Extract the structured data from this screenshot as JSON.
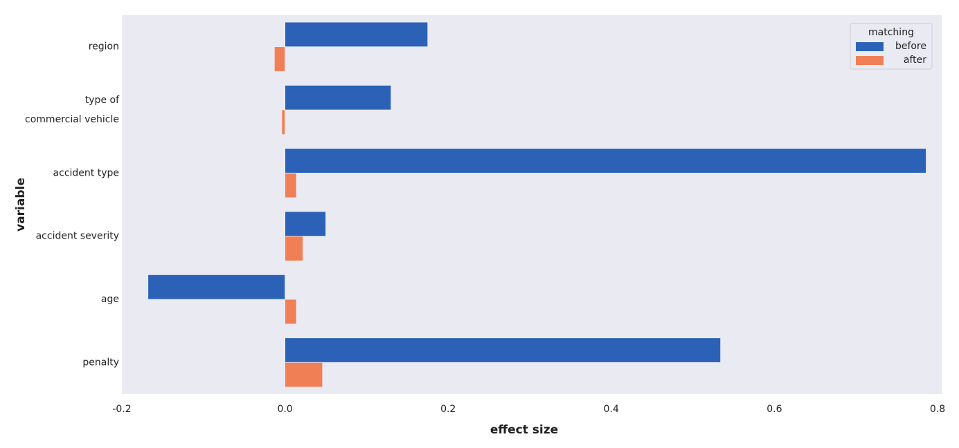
{
  "chart_data": {
    "type": "hbar",
    "xlabel": "effect size",
    "ylabel": "variable",
    "categories": [
      "region",
      "type of\ncommercial vehicle",
      "accident type",
      "accident severity",
      "age",
      "penalty"
    ],
    "series": [
      {
        "name": "before",
        "color": "#2b62b8",
        "values": [
          0.175,
          0.13,
          0.786,
          0.05,
          -0.168,
          0.534
        ]
      },
      {
        "name": "after",
        "color": "#f07f55",
        "values": [
          -0.013,
          -0.004,
          0.014,
          0.022,
          0.014,
          0.046
        ]
      }
    ],
    "legend_title": "matching",
    "legend": "upper right",
    "xlim": [
      -0.2,
      0.8
    ],
    "xticks": [
      {
        "value": -0.2,
        "label": "-0.2"
      },
      {
        "value": 0,
        "label": "0.0"
      },
      0.2,
      0.4,
      0.6,
      0.8
    ],
    "grid": false
  }
}
